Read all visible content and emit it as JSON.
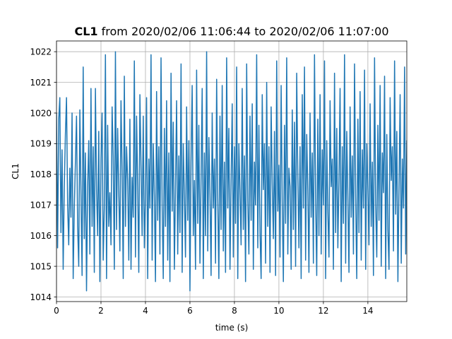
{
  "chart_data": {
    "type": "line",
    "title_bold": "CL1",
    "title_rest": " from 2020/02/06 11:06:44 to 2020/02/06 11:07:00",
    "xlabel": "time (s)",
    "ylabel": "CL1",
    "xlim": [
      0,
      15.75
    ],
    "ylim": [
      1013.85,
      1022.35
    ],
    "xticks": [
      0,
      2,
      4,
      6,
      8,
      10,
      12,
      14
    ],
    "yticks": [
      1014,
      1015,
      1016,
      1017,
      1018,
      1019,
      1020,
      1021,
      1022
    ],
    "grid": true,
    "color": "#1f77b4",
    "series": [
      {
        "x_start": 0,
        "x_step": 0.05,
        "values": [
          1020.0,
          1015.6,
          1019.8,
          1020.5,
          1016.1,
          1018.8,
          1014.9,
          1017.6,
          1019.3,
          1020.5,
          1017.0,
          1015.7,
          1018.2,
          1016.6,
          1020.0,
          1014.6,
          1016.9,
          1018.4,
          1019.9,
          1016.3,
          1015.0,
          1020.1,
          1017.4,
          1014.7,
          1021.5,
          1015.9,
          1018.7,
          1014.2,
          1017.6,
          1019.1,
          1015.4,
          1020.8,
          1016.3,
          1018.9,
          1014.8,
          1020.8,
          1017.5,
          1016.0,
          1019.4,
          1014.5,
          1018.5,
          1020.0,
          1015.2,
          1016.9,
          1021.9,
          1014.6,
          1019.6,
          1016.3,
          1017.4,
          1015.7,
          1020.2,
          1018.6,
          1014.9,
          1022.0,
          1016.2,
          1019.5,
          1017.4,
          1015.5,
          1020.4,
          1018.1,
          1014.6,
          1021.2,
          1016.3,
          1018.9,
          1017.8,
          1015.2,
          1019.8,
          1014.9,
          1017.9,
          1016.6,
          1021.7,
          1015.3,
          1019.9,
          1017.6,
          1014.8,
          1020.6,
          1018.3,
          1016.0,
          1019.9,
          1015.6,
          1017.2,
          1020.5,
          1014.6,
          1018.5,
          1016.9,
          1021.9,
          1015.2,
          1019.0,
          1017.3,
          1014.5,
          1020.7,
          1016.5,
          1018.9,
          1015.4,
          1021.8,
          1017.0,
          1014.6,
          1019.5,
          1016.3,
          1020.4,
          1015.2,
          1018.7,
          1014.5,
          1021.3,
          1016.8,
          1019.7,
          1014.9,
          1017.6,
          1020.4,
          1015.4,
          1018.6,
          1016.1,
          1021.6,
          1014.8,
          1019.0,
          1017.3,
          1015.3,
          1020.2,
          1016.5,
          1019.1,
          1014.2,
          1018.4,
          1020.9,
          1016.0,
          1017.8,
          1014.9,
          1021.4,
          1016.4,
          1019.6,
          1015.1,
          1017.9,
          1020.8,
          1014.6,
          1018.7,
          1016.0,
          1022.0,
          1015.5,
          1019.2,
          1017.4,
          1014.7,
          1020.0,
          1016.9,
          1018.5,
          1015.1,
          1021.1,
          1017.2,
          1014.6,
          1019.9,
          1016.2,
          1020.9,
          1015.5,
          1018.4,
          1014.8,
          1021.8,
          1016.9,
          1019.5,
          1014.9,
          1017.7,
          1020.3,
          1015.3,
          1018.9,
          1016.4,
          1021.5,
          1014.6,
          1019.0,
          1017.4,
          1015.7,
          1020.8,
          1016.2,
          1018.6,
          1014.5,
          1021.6,
          1017.1,
          1015.4,
          1019.9,
          1016.5,
          1020.3,
          1014.9,
          1018.4,
          1017.0,
          1021.9,
          1015.6,
          1019.6,
          1016.1,
          1014.6,
          1020.6,
          1017.5,
          1019.0,
          1015.1,
          1021.0,
          1016.3,
          1018.9,
          1014.8,
          1020.2,
          1017.7,
          1015.9,
          1019.4,
          1014.7,
          1021.7,
          1016.8,
          1018.3,
          1015.3,
          1020.9,
          1017.1,
          1014.5,
          1019.6,
          1016.4,
          1021.8,
          1015.4,
          1018.2,
          1017.6,
          1014.9,
          1020.1,
          1016.2,
          1019.7,
          1015.0,
          1021.3,
          1017.9,
          1015.6,
          1018.9,
          1014.6,
          1020.6,
          1016.9,
          1021.5,
          1015.2,
          1019.3,
          1017.5,
          1014.8,
          1020.0,
          1016.6,
          1018.7,
          1015.1,
          1021.9,
          1017.2,
          1014.7,
          1019.8,
          1016.0,
          1020.6,
          1015.4,
          1018.8,
          1017.0,
          1021.7,
          1014.6,
          1019.1,
          1016.8,
          1015.3,
          1020.4,
          1017.6,
          1018.5,
          1014.9,
          1021.3,
          1016.1,
          1019.5,
          1015.6,
          1017.8,
          1020.8,
          1014.5,
          1018.9,
          1016.4,
          1021.9,
          1015.1,
          1019.4,
          1017.2,
          1014.8,
          1020.2,
          1016.6,
          1018.6,
          1015.4,
          1021.6,
          1017.3,
          1014.6,
          1019.8,
          1016.1,
          1020.7,
          1015.2,
          1018.8,
          1016.9,
          1021.4,
          1014.9,
          1019.0,
          1017.5,
          1015.7,
          1020.3,
          1016.3,
          1018.4,
          1014.7,
          1021.8,
          1017.0,
          1015.3,
          1019.6,
          1016.5,
          1020.9,
          1015.0,
          1018.7,
          1017.4,
          1021.2,
          1014.6,
          1019.3,
          1016.2,
          1014.9,
          1020.5,
          1017.8,
          1018.9,
          1015.5,
          1021.7,
          1016.7,
          1019.4,
          1014.5,
          1017.6,
          1020.6,
          1015.1,
          1018.5,
          1016.9,
          1021.5,
          1015.4,
          1019.1,
          1017.2,
          1014.8,
          1020.1,
          1016.4,
          1018.8,
          1015.2,
          1021.9,
          1017.3,
          1014.7,
          1019.9,
          1016.0,
          1020.3,
          1015.6,
          1018.6,
          1016.8,
          1021.6,
          1014.9,
          1019.5,
          1017.7,
          1015.3,
          1020.8,
          1016.2,
          1018.3,
          1014.6,
          1021.1,
          1017.1,
          1015.0,
          1019.7,
          1016.6,
          1022.1,
          1015.4,
          1018.9,
          1017.5,
          1014.5,
          1020.4,
          1016.3,
          1019.2,
          1015.1,
          1021.4,
          1017.9,
          1014.8,
          1018.7,
          1016.1,
          1020.7,
          1015.5,
          1019.0,
          1016.9,
          1021.8,
          1014.6,
          1019.6,
          1017.4,
          1015.8,
          1020.2,
          1016.5,
          1018.5,
          1014.9,
          1021.5,
          1017.0,
          1015.3,
          1019.8,
          1016.2,
          1020.5,
          1015.0,
          1018.8,
          1017.6,
          1021.9,
          1014.7,
          1019.2,
          1016.7,
          1015.4,
          1020.6,
          1017.2,
          1018.4,
          1015.2,
          1021.2,
          1016.4,
          1019.5,
          1014.6,
          1017.8,
          1020.9,
          1015.6,
          1018.6,
          1016.0,
          1021.6,
          1014.8,
          1019.3,
          1017.3,
          1014.2,
          1020.1,
          1016.8,
          1018.7,
          1015.3,
          1021.9,
          1017.5,
          1015.0,
          1019.7,
          1016.3,
          1020.4,
          1015.7,
          1018.9,
          1017.1,
          1021.3,
          1014.6,
          1019.4,
          1016.6,
          1015.2,
          1020.8,
          1017.7,
          1018.5,
          1014.9,
          1021.7,
          1016.1,
          1019.6,
          1015.5,
          1017.9,
          1020.3,
          1014.7,
          1018.8,
          1016.9,
          1021.0,
          1015.4,
          1019.1,
          1017.4,
          1016.0,
          1020.2,
          1017.6
        ]
      }
    ]
  }
}
